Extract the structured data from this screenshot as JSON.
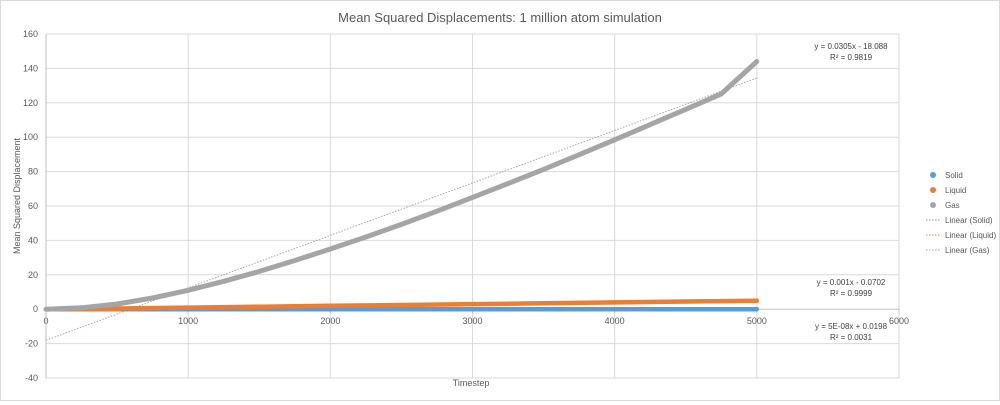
{
  "chart_data": {
    "type": "scatter",
    "title": "Mean Squared Displacements: 1 million atom simulation",
    "xlabel": "Timestep",
    "ylabel": "Mean Squared Displacement",
    "xlim": [
      0,
      6000
    ],
    "ylim": [
      -40,
      160
    ],
    "x_ticks": [
      0,
      1000,
      2000,
      3000,
      4000,
      5000,
      6000
    ],
    "y_ticks": [
      -40,
      -20,
      0,
      20,
      40,
      60,
      80,
      100,
      120,
      140,
      160
    ],
    "grid": true,
    "legend_position": "right",
    "series": [
      {
        "name": "Solid",
        "color": "#5b9bd5",
        "x": [
          0,
          500,
          1000,
          1500,
          2000,
          2500,
          3000,
          3500,
          4000,
          4500,
          5000
        ],
        "y": [
          0,
          0.02,
          0.02,
          0.02,
          0.02,
          0.02,
          0.02,
          0.02,
          0.02,
          0.02,
          0.02
        ]
      },
      {
        "name": "Liquid",
        "color": "#ed7d31",
        "x": [
          0,
          500,
          1000,
          1500,
          2000,
          2500,
          3000,
          3500,
          4000,
          4500,
          5000
        ],
        "y": [
          0,
          0.4,
          0.95,
          1.45,
          1.95,
          2.45,
          2.95,
          3.45,
          3.95,
          4.45,
          4.95
        ]
      },
      {
        "name": "Gas",
        "color": "#a5a5a5",
        "x": [
          0,
          250,
          500,
          750,
          1000,
          1250,
          1500,
          1750,
          2000,
          2250,
          2500,
          2750,
          3000,
          3250,
          3500,
          3750,
          4000,
          4250,
          4500,
          4750,
          5000
        ],
        "y": [
          0,
          0.8,
          3,
          6.5,
          11,
          16.2,
          22,
          28.3,
          35,
          42,
          49.3,
          57,
          65,
          73,
          81.3,
          89.8,
          98.5,
          107.3,
          116.2,
          125.2,
          144
        ]
      }
    ],
    "trendlines": [
      {
        "name": "Linear (Solid)",
        "color": "#5b9bd5",
        "slope": 5e-08,
        "intercept": 0.0198,
        "x_range": [
          0,
          5000
        ],
        "equation": "y = 5E-08x + 0.0198",
        "r2": "R² = 0.0031"
      },
      {
        "name": "Linear (Liquid)",
        "color": "#ed7d31",
        "slope": 0.001,
        "intercept": -0.0702,
        "x_range": [
          0,
          5000
        ],
        "equation": "y = 0.001x - 0.0702",
        "r2": "R² = 0.9999"
      },
      {
        "name": "Linear (Gas)",
        "color": "#a5a5a5",
        "slope": 0.0305,
        "intercept": -18.088,
        "x_range": [
          0,
          5000
        ],
        "equation": "y = 0.0305x - 18.088",
        "r2": "R² = 0.9819"
      }
    ],
    "annotations": [
      {
        "series": "Gas",
        "equation": "y = 0.0305x - 18.088",
        "r2": "R² = 0.9819",
        "anchor": [
          4850,
          144
        ]
      },
      {
        "series": "Liquid",
        "equation": "y = 0.001x - 0.0702",
        "r2": "R² = 0.9999",
        "anchor": [
          4850,
          6
        ]
      },
      {
        "series": "Solid",
        "equation": "y = 5E-08x + 0.0198",
        "r2": "R² = 0.0031",
        "anchor": [
          4850,
          -16
        ]
      }
    ]
  }
}
